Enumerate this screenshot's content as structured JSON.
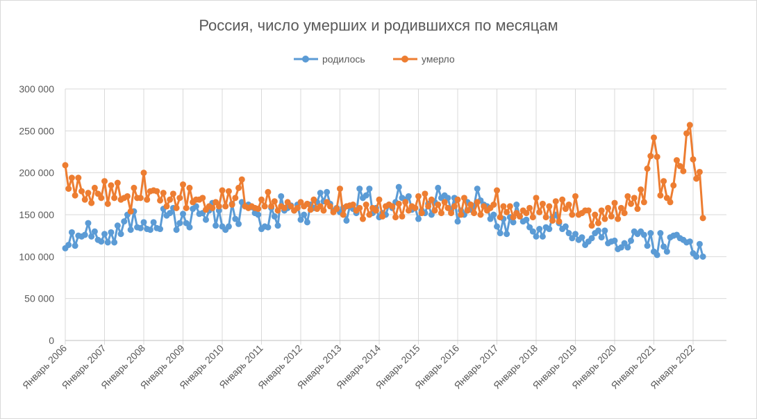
{
  "chart_data": {
    "type": "line",
    "title": "Россия, число умерших и родившихся по месяцам",
    "legend_position": "top",
    "grid": true,
    "ylim": [
      0,
      300000
    ],
    "y_ticks": [
      "0",
      "50 000",
      "100 000",
      "150 000",
      "200 000",
      "250 000",
      "300 000"
    ],
    "x_start": "Январь 2006",
    "x_end": "Апрель 2022",
    "x_ticks": [
      "Январь 2006",
      "Январь 2007",
      "Январь 2008",
      "Январь 2009",
      "Январь 2010",
      "Январь 2011",
      "Январь 2012",
      "Январь 2013",
      "Январь 2014",
      "Январь 2015",
      "Январь 2016",
      "Январь 2017",
      "Январь 2018",
      "Январь 2019",
      "Январь 2020",
      "Январь 2021",
      "Январь 2022"
    ],
    "series": [
      {
        "name": "родилось",
        "color": "#5b9bd5",
        "marker": "circle",
        "values": [
          110000,
          114000,
          129000,
          113000,
          125000,
          124000,
          126000,
          140000,
          124000,
          130000,
          120000,
          118000,
          127000,
          117000,
          129000,
          117000,
          137000,
          127000,
          142000,
          150000,
          132000,
          154000,
          135000,
          134000,
          141000,
          133000,
          132000,
          141000,
          134000,
          133000,
          157000,
          149000,
          152000,
          158000,
          132000,
          140000,
          151000,
          140000,
          135000,
          157000,
          160000,
          151000,
          152000,
          144000,
          155000,
          164000,
          137000,
          155000,
          136000,
          132000,
          136000,
          163000,
          145000,
          139000,
          165000,
          160000,
          162000,
          159000,
          152000,
          150000,
          133000,
          136000,
          135000,
          158000,
          148000,
          137000,
          172000,
          155000,
          158000,
          161000,
          155000,
          162000,
          144000,
          150000,
          141000,
          162000,
          158000,
          165000,
          176000,
          166000,
          177000,
          163000,
          155000,
          158000,
          153000,
          158000,
          143000,
          160000,
          157000,
          152000,
          181000,
          170000,
          173000,
          181000,
          152000,
          158000,
          147000,
          152000,
          150000,
          162000,
          158000,
          165000,
          183000,
          170000,
          168000,
          172000,
          156000,
          158000,
          145000,
          155000,
          152000,
          163000,
          150000,
          165000,
          182000,
          170000,
          173000,
          170000,
          155000,
          170000,
          142000,
          155000,
          150000,
          165000,
          156000,
          160000,
          181000,
          167000,
          162000,
          160000,
          145000,
          150000,
          136000,
          128000,
          145000,
          127000,
          147000,
          141000,
          162000,
          148000,
          142000,
          144000,
          135000,
          130000,
          124000,
          133000,
          124000,
          135000,
          133000,
          147000,
          150000,
          140000,
          133000,
          136000,
          128000,
          122000,
          127000,
          120000,
          123000,
          114000,
          118000,
          122000,
          128000,
          131000,
          123000,
          131000,
          116000,
          118000,
          119000,
          109000,
          111000,
          116000,
          111000,
          119000,
          130000,
          127000,
          130000,
          126000,
          113000,
          128000,
          106000,
          102000,
          128000,
          112000,
          106000,
          123000,
          125000,
          126000,
          122000,
          120000,
          117000,
          118000,
          104000,
          100000,
          115000,
          100000
        ]
      },
      {
        "name": "умерло",
        "color": "#ed7d31",
        "marker": "circle",
        "values": [
          209000,
          181000,
          194000,
          173000,
          194000,
          178000,
          168000,
          176000,
          164000,
          182000,
          175000,
          170000,
          190000,
          163000,
          185000,
          170000,
          188000,
          168000,
          170000,
          172000,
          154000,
          182000,
          170000,
          170000,
          200000,
          168000,
          178000,
          179000,
          178000,
          167000,
          176000,
          160000,
          168000,
          175000,
          158000,
          170000,
          186000,
          158000,
          182000,
          165000,
          168000,
          168000,
          170000,
          156000,
          160000,
          158000,
          165000,
          160000,
          179000,
          160000,
          178000,
          162000,
          170000,
          182000,
          192000,
          160000,
          158000,
          160000,
          158000,
          157000,
          168000,
          160000,
          177000,
          160000,
          166000,
          155000,
          160000,
          158000,
          165000,
          160000,
          155000,
          158000,
          165000,
          160000,
          163000,
          156000,
          168000,
          157000,
          160000,
          155000,
          165000,
          160000,
          153000,
          157000,
          181000,
          150000,
          160000,
          161000,
          162000,
          155000,
          158000,
          145000,
          162000,
          150000,
          158000,
          155000,
          168000,
          148000,
          160000,
          162000,
          160000,
          147000,
          163000,
          148000,
          165000,
          155000,
          160000,
          158000,
          172000,
          152000,
          175000,
          160000,
          168000,
          155000,
          162000,
          152000,
          165000,
          158000,
          152000,
          160000,
          168000,
          150000,
          170000,
          155000,
          162000,
          152000,
          165000,
          150000,
          160000,
          155000,
          158000,
          162000,
          179000,
          147000,
          160000,
          153000,
          160000,
          147000,
          152000,
          148000,
          155000,
          152000,
          158000,
          147000,
          170000,
          153000,
          163000,
          147000,
          160000,
          143000,
          166000,
          142000,
          168000,
          157000,
          162000,
          150000,
          172000,
          150000,
          152000,
          155000,
          155000,
          137000,
          150000,
          140000,
          155000,
          145000,
          158000,
          148000,
          164000,
          145000,
          158000,
          152000,
          172000,
          163000,
          170000,
          157000,
          180000,
          165000,
          205000,
          220000,
          242000,
          219000,
          173000,
          190000,
          170000,
          165000,
          185000,
          215000,
          208000,
          202000,
          247000,
          257000,
          216000,
          193000,
          201000,
          146000
        ]
      }
    ]
  }
}
